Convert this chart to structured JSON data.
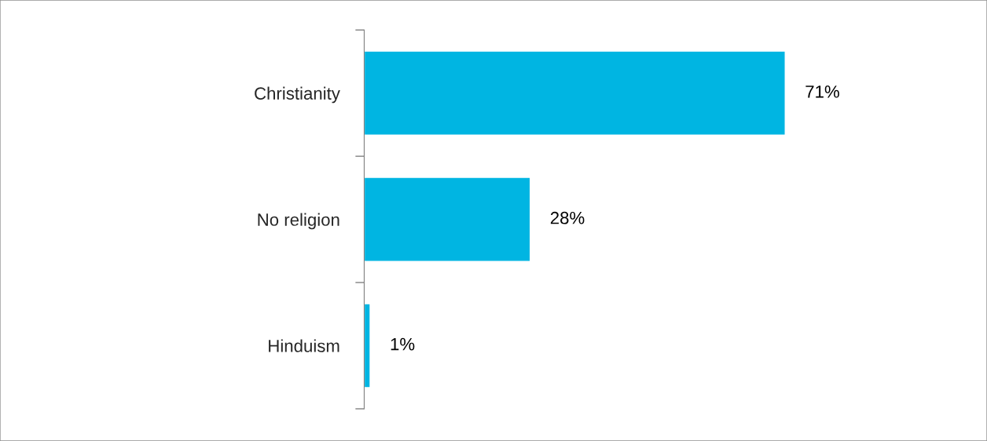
{
  "chart_data": {
    "type": "bar",
    "orientation": "horizontal",
    "categories": [
      "Christianity",
      "No religion",
      "Hinduism"
    ],
    "values": [
      71,
      28,
      1
    ],
    "value_labels": [
      "71%",
      "28%",
      "1%"
    ],
    "color": "#00b5e2",
    "grid": false,
    "legend": false
  }
}
